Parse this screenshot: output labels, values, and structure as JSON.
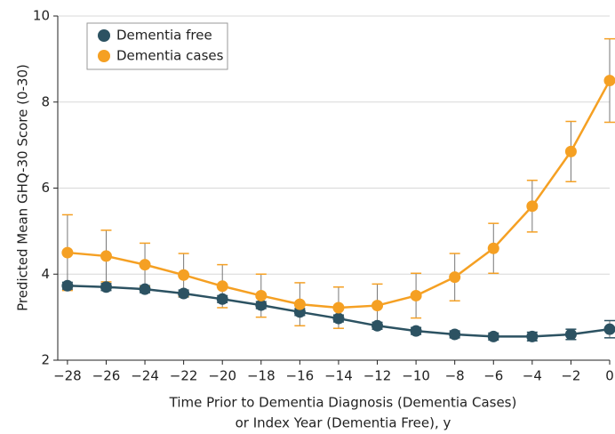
{
  "chart_data": {
    "type": "line",
    "x_label": [
      "Time Prior to Dementia Diagnosis (Dementia Cases)",
      "or Index Year (Dementia Free), y"
    ],
    "y_label": "Predicted Mean GHQ-30 Score (0-30)",
    "x": [
      -28,
      -26,
      -24,
      -22,
      -20,
      -18,
      -16,
      -14,
      -12,
      -10,
      -8,
      -6,
      -4,
      -2,
      0
    ],
    "series": [
      {
        "name": "Dementia free",
        "color": "#2c5262",
        "values": [
          3.73,
          3.7,
          3.65,
          3.55,
          3.42,
          3.28,
          3.12,
          2.97,
          2.8,
          2.68,
          2.6,
          2.55,
          2.55,
          2.6,
          2.72
        ],
        "errors": [
          0.08,
          0.08,
          0.08,
          0.08,
          0.08,
          0.08,
          0.08,
          0.08,
          0.08,
          0.08,
          0.08,
          0.08,
          0.1,
          0.12,
          0.2
        ]
      },
      {
        "name": "Dementia cases",
        "color": "#f5a023",
        "values": [
          4.5,
          4.42,
          4.22,
          3.98,
          3.72,
          3.5,
          3.3,
          3.22,
          3.27,
          3.5,
          3.93,
          4.6,
          5.58,
          6.85,
          8.5
        ],
        "errors": [
          0.88,
          0.6,
          0.5,
          0.5,
          0.5,
          0.5,
          0.5,
          0.48,
          0.5,
          0.52,
          0.55,
          0.58,
          0.6,
          0.7,
          0.97
        ]
      }
    ],
    "xlim": [
      -28.5,
      0
    ],
    "xticks": [
      {
        "value": -28,
        "label": "−28"
      },
      {
        "value": -26,
        "label": "−26"
      },
      {
        "value": -24,
        "label": "−24"
      },
      {
        "value": -22,
        "label": "−22"
      },
      {
        "value": -20,
        "label": "−20"
      },
      {
        "value": -18,
        "label": "−18"
      },
      {
        "value": -16,
        "label": "−16"
      },
      {
        "value": -14,
        "label": "−14"
      },
      {
        "value": -12,
        "label": "−12"
      },
      {
        "value": -10,
        "label": "−10"
      },
      {
        "value": -8,
        "label": "−8"
      },
      {
        "value": -6,
        "label": "−6"
      },
      {
        "value": -4,
        "label": "−4"
      },
      {
        "value": -2,
        "label": "−2"
      },
      0
    ],
    "ylim": [
      2,
      10
    ],
    "yticks": [
      2,
      4,
      6,
      8,
      10
    ],
    "grid": true,
    "legend": "upper left"
  }
}
